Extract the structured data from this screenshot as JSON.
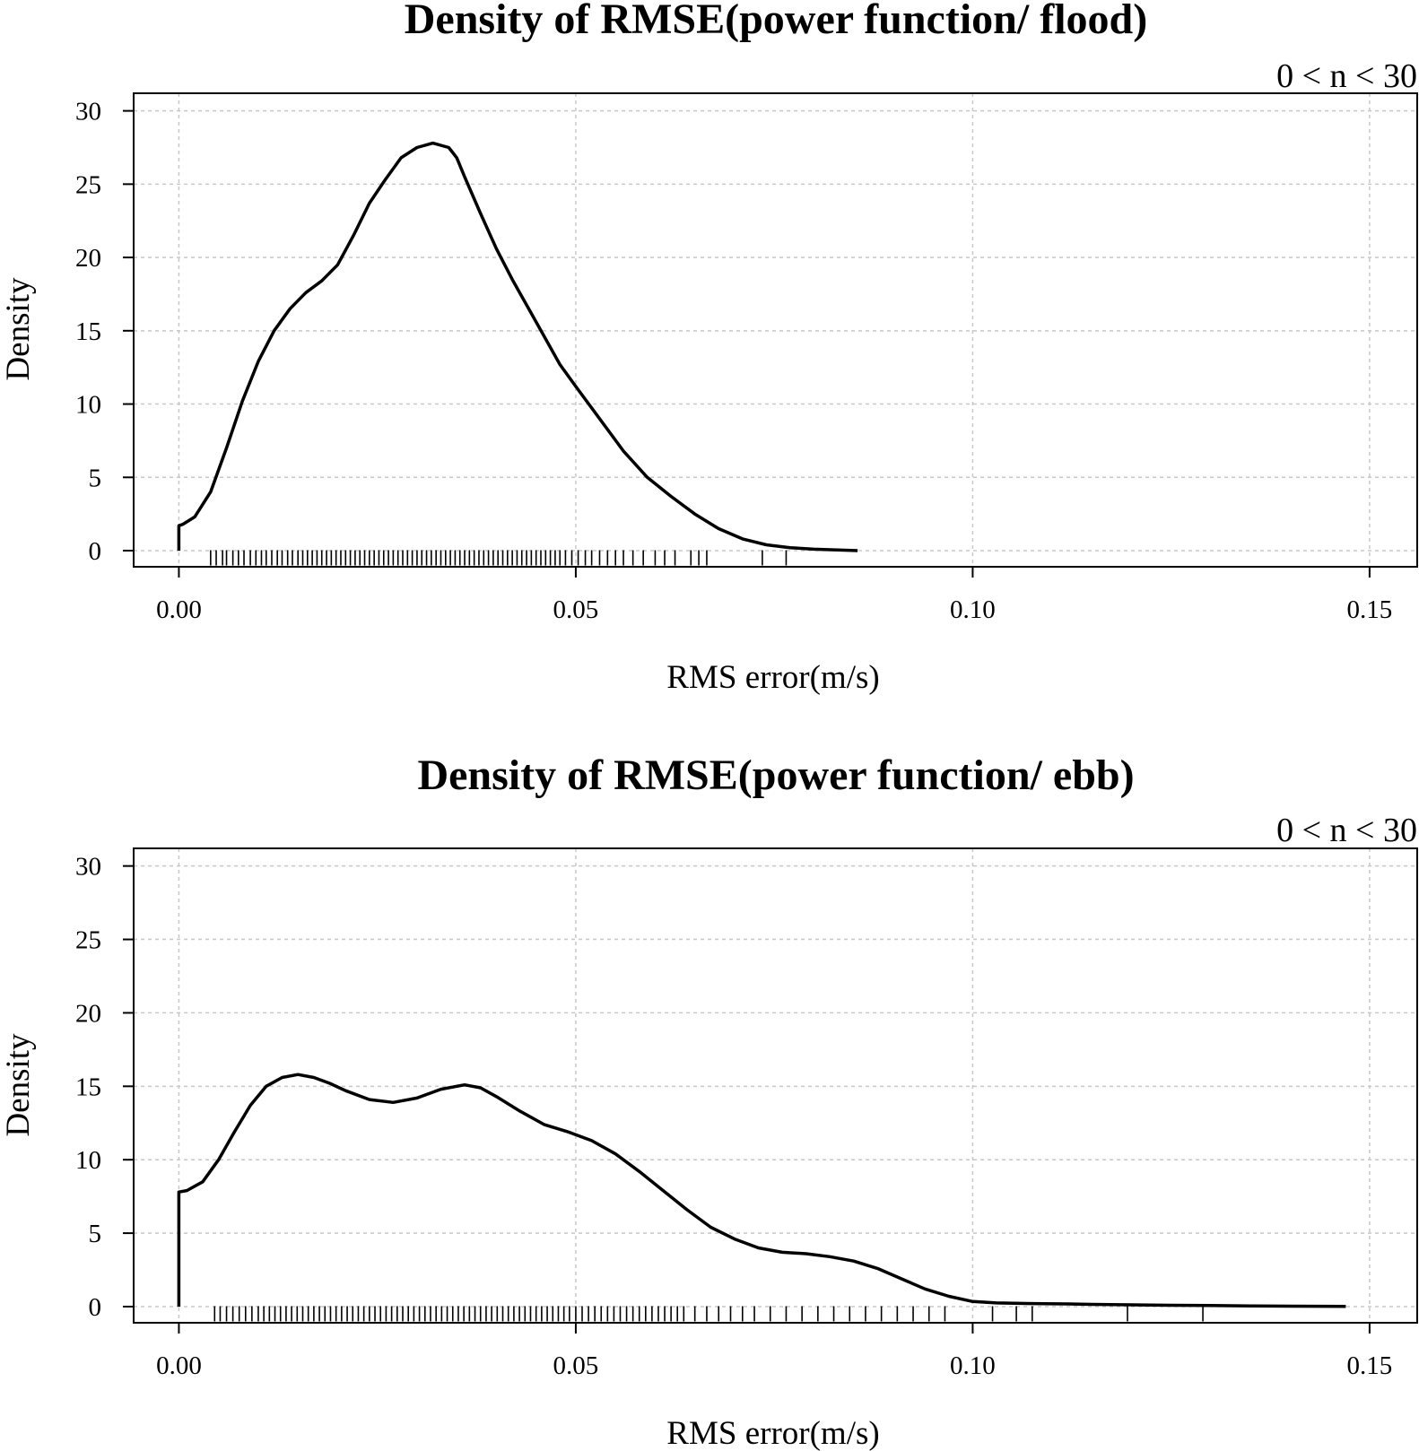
{
  "chart_data": [
    {
      "type": "line",
      "title": "Density of RMSE(power function/ flood)",
      "subtitle": "0 < n < 30",
      "xlabel": "RMS error(m/s)",
      "ylabel": "Density",
      "xlim": [
        -0.0057,
        0.156
      ],
      "ylim": [
        -1.1,
        31.2
      ],
      "x_ticks": [
        0.0,
        0.05,
        0.1,
        0.15
      ],
      "x_tick_labels": [
        "0.00",
        "0.05",
        "0.10",
        "0.15"
      ],
      "y_ticks": [
        0,
        5,
        10,
        15,
        20,
        25,
        30
      ],
      "y_tick_labels": [
        "0",
        "5",
        "10",
        "15",
        "20",
        "25",
        "30"
      ],
      "grid": true,
      "series": [
        {
          "x": [
            0.0,
            0.0005,
            0.002,
            0.004,
            0.006,
            0.008,
            0.01,
            0.012,
            0.014,
            0.016,
            0.018,
            0.02,
            0.022,
            0.024,
            0.026,
            0.028,
            0.03,
            0.032,
            0.034,
            0.035,
            0.036,
            0.038,
            0.04,
            0.042,
            0.045,
            0.048,
            0.05,
            0.053,
            0.056,
            0.059,
            0.062,
            0.065,
            0.068,
            0.071,
            0.074,
            0.077,
            0.08,
            0.083,
            0.0855
          ],
          "y": [
            1.7,
            1.8,
            2.3,
            4.0,
            7.0,
            10.2,
            12.9,
            15.0,
            16.5,
            17.6,
            18.4,
            19.5,
            21.5,
            23.7,
            25.3,
            26.8,
            27.5,
            27.8,
            27.5,
            26.8,
            25.5,
            23.0,
            20.6,
            18.5,
            15.6,
            12.7,
            11.2,
            9.0,
            6.8,
            5.0,
            3.7,
            2.5,
            1.5,
            0.8,
            0.4,
            0.2,
            0.1,
            0.05,
            0.0
          ]
        }
      ],
      "rug": [
        0.004,
        0.0047,
        0.0055,
        0.006,
        0.0068,
        0.0075,
        0.0082,
        0.009,
        0.0097,
        0.0104,
        0.011,
        0.0117,
        0.0124,
        0.013,
        0.0137,
        0.0143,
        0.015,
        0.0156,
        0.0162,
        0.0168,
        0.0174,
        0.018,
        0.0186,
        0.0192,
        0.0198,
        0.0204,
        0.021,
        0.0216,
        0.0222,
        0.0228,
        0.0234,
        0.024,
        0.0246,
        0.0252,
        0.0258,
        0.0264,
        0.027,
        0.0276,
        0.0282,
        0.0288,
        0.0294,
        0.03,
        0.0306,
        0.0312,
        0.0318,
        0.0324,
        0.033,
        0.0336,
        0.0342,
        0.0348,
        0.0354,
        0.036,
        0.0366,
        0.0372,
        0.0378,
        0.0384,
        0.039,
        0.0396,
        0.0402,
        0.0408,
        0.0414,
        0.042,
        0.0426,
        0.0432,
        0.0438,
        0.0444,
        0.045,
        0.0456,
        0.0462,
        0.0468,
        0.0474,
        0.048,
        0.0487,
        0.0495,
        0.0503,
        0.0512,
        0.052,
        0.053,
        0.054,
        0.055,
        0.056,
        0.0572,
        0.0585,
        0.06,
        0.0612,
        0.0625,
        0.0645,
        0.0655,
        0.0665,
        0.0735,
        0.0765
      ]
    },
    {
      "type": "line",
      "title": "Density of RMSE(power function/ ebb)",
      "subtitle": "0 < n < 30",
      "xlabel": "RMS error(m/s)",
      "ylabel": "Density",
      "xlim": [
        -0.0057,
        0.156
      ],
      "ylim": [
        -1.1,
        31.2
      ],
      "x_ticks": [
        0.0,
        0.05,
        0.1,
        0.15
      ],
      "x_tick_labels": [
        "0.00",
        "0.05",
        "0.10",
        "0.15"
      ],
      "y_ticks": [
        0,
        5,
        10,
        15,
        20,
        25,
        30
      ],
      "y_tick_labels": [
        "0",
        "5",
        "10",
        "15",
        "20",
        "25",
        "30"
      ],
      "grid": true,
      "series": [
        {
          "x": [
            0.0,
            0.001,
            0.003,
            0.005,
            0.007,
            0.009,
            0.011,
            0.013,
            0.015,
            0.017,
            0.019,
            0.021,
            0.024,
            0.027,
            0.03,
            0.033,
            0.036,
            0.038,
            0.04,
            0.043,
            0.046,
            0.049,
            0.052,
            0.055,
            0.058,
            0.061,
            0.064,
            0.067,
            0.07,
            0.073,
            0.076,
            0.079,
            0.082,
            0.085,
            0.088,
            0.091,
            0.094,
            0.097,
            0.1,
            0.103,
            0.106,
            0.109,
            0.112,
            0.115,
            0.12,
            0.125,
            0.13,
            0.135,
            0.14,
            0.147
          ],
          "y": [
            7.8,
            7.9,
            8.5,
            10.0,
            11.9,
            13.7,
            15.0,
            15.6,
            15.8,
            15.6,
            15.2,
            14.7,
            14.1,
            13.9,
            14.2,
            14.8,
            15.1,
            14.9,
            14.3,
            13.3,
            12.4,
            11.9,
            11.3,
            10.4,
            9.2,
            7.9,
            6.6,
            5.4,
            4.6,
            4.0,
            3.7,
            3.6,
            3.4,
            3.1,
            2.6,
            1.9,
            1.2,
            0.7,
            0.35,
            0.25,
            0.22,
            0.2,
            0.18,
            0.15,
            0.12,
            0.09,
            0.07,
            0.05,
            0.03,
            0.02
          ]
        }
      ],
      "rug": [
        0.0045,
        0.0052,
        0.006,
        0.0068,
        0.0076,
        0.0084,
        0.0092,
        0.01,
        0.0107,
        0.0114,
        0.0121,
        0.0128,
        0.0135,
        0.0142,
        0.0149,
        0.0156,
        0.0163,
        0.017,
        0.0177,
        0.0184,
        0.0191,
        0.0198,
        0.0205,
        0.0212,
        0.0219,
        0.0226,
        0.0233,
        0.024,
        0.0247,
        0.0254,
        0.0261,
        0.0268,
        0.0275,
        0.0282,
        0.0289,
        0.0296,
        0.0303,
        0.031,
        0.0317,
        0.0324,
        0.0331,
        0.0338,
        0.0345,
        0.0352,
        0.0359,
        0.0366,
        0.0373,
        0.038,
        0.0387,
        0.0394,
        0.0401,
        0.0408,
        0.0415,
        0.0422,
        0.0429,
        0.0436,
        0.0443,
        0.045,
        0.0457,
        0.0464,
        0.0471,
        0.0478,
        0.0485,
        0.0492,
        0.05,
        0.0508,
        0.0516,
        0.0524,
        0.0532,
        0.054,
        0.0548,
        0.0556,
        0.0564,
        0.0572,
        0.058,
        0.0588,
        0.0596,
        0.0604,
        0.0612,
        0.062,
        0.0628,
        0.0636,
        0.065,
        0.0665,
        0.068,
        0.0695,
        0.071,
        0.0725,
        0.0745,
        0.0765,
        0.0785,
        0.0805,
        0.0825,
        0.0845,
        0.0865,
        0.0885,
        0.0905,
        0.0925,
        0.0945,
        0.0965,
        0.1025,
        0.1055,
        0.1075,
        0.1195,
        0.129
      ]
    }
  ]
}
